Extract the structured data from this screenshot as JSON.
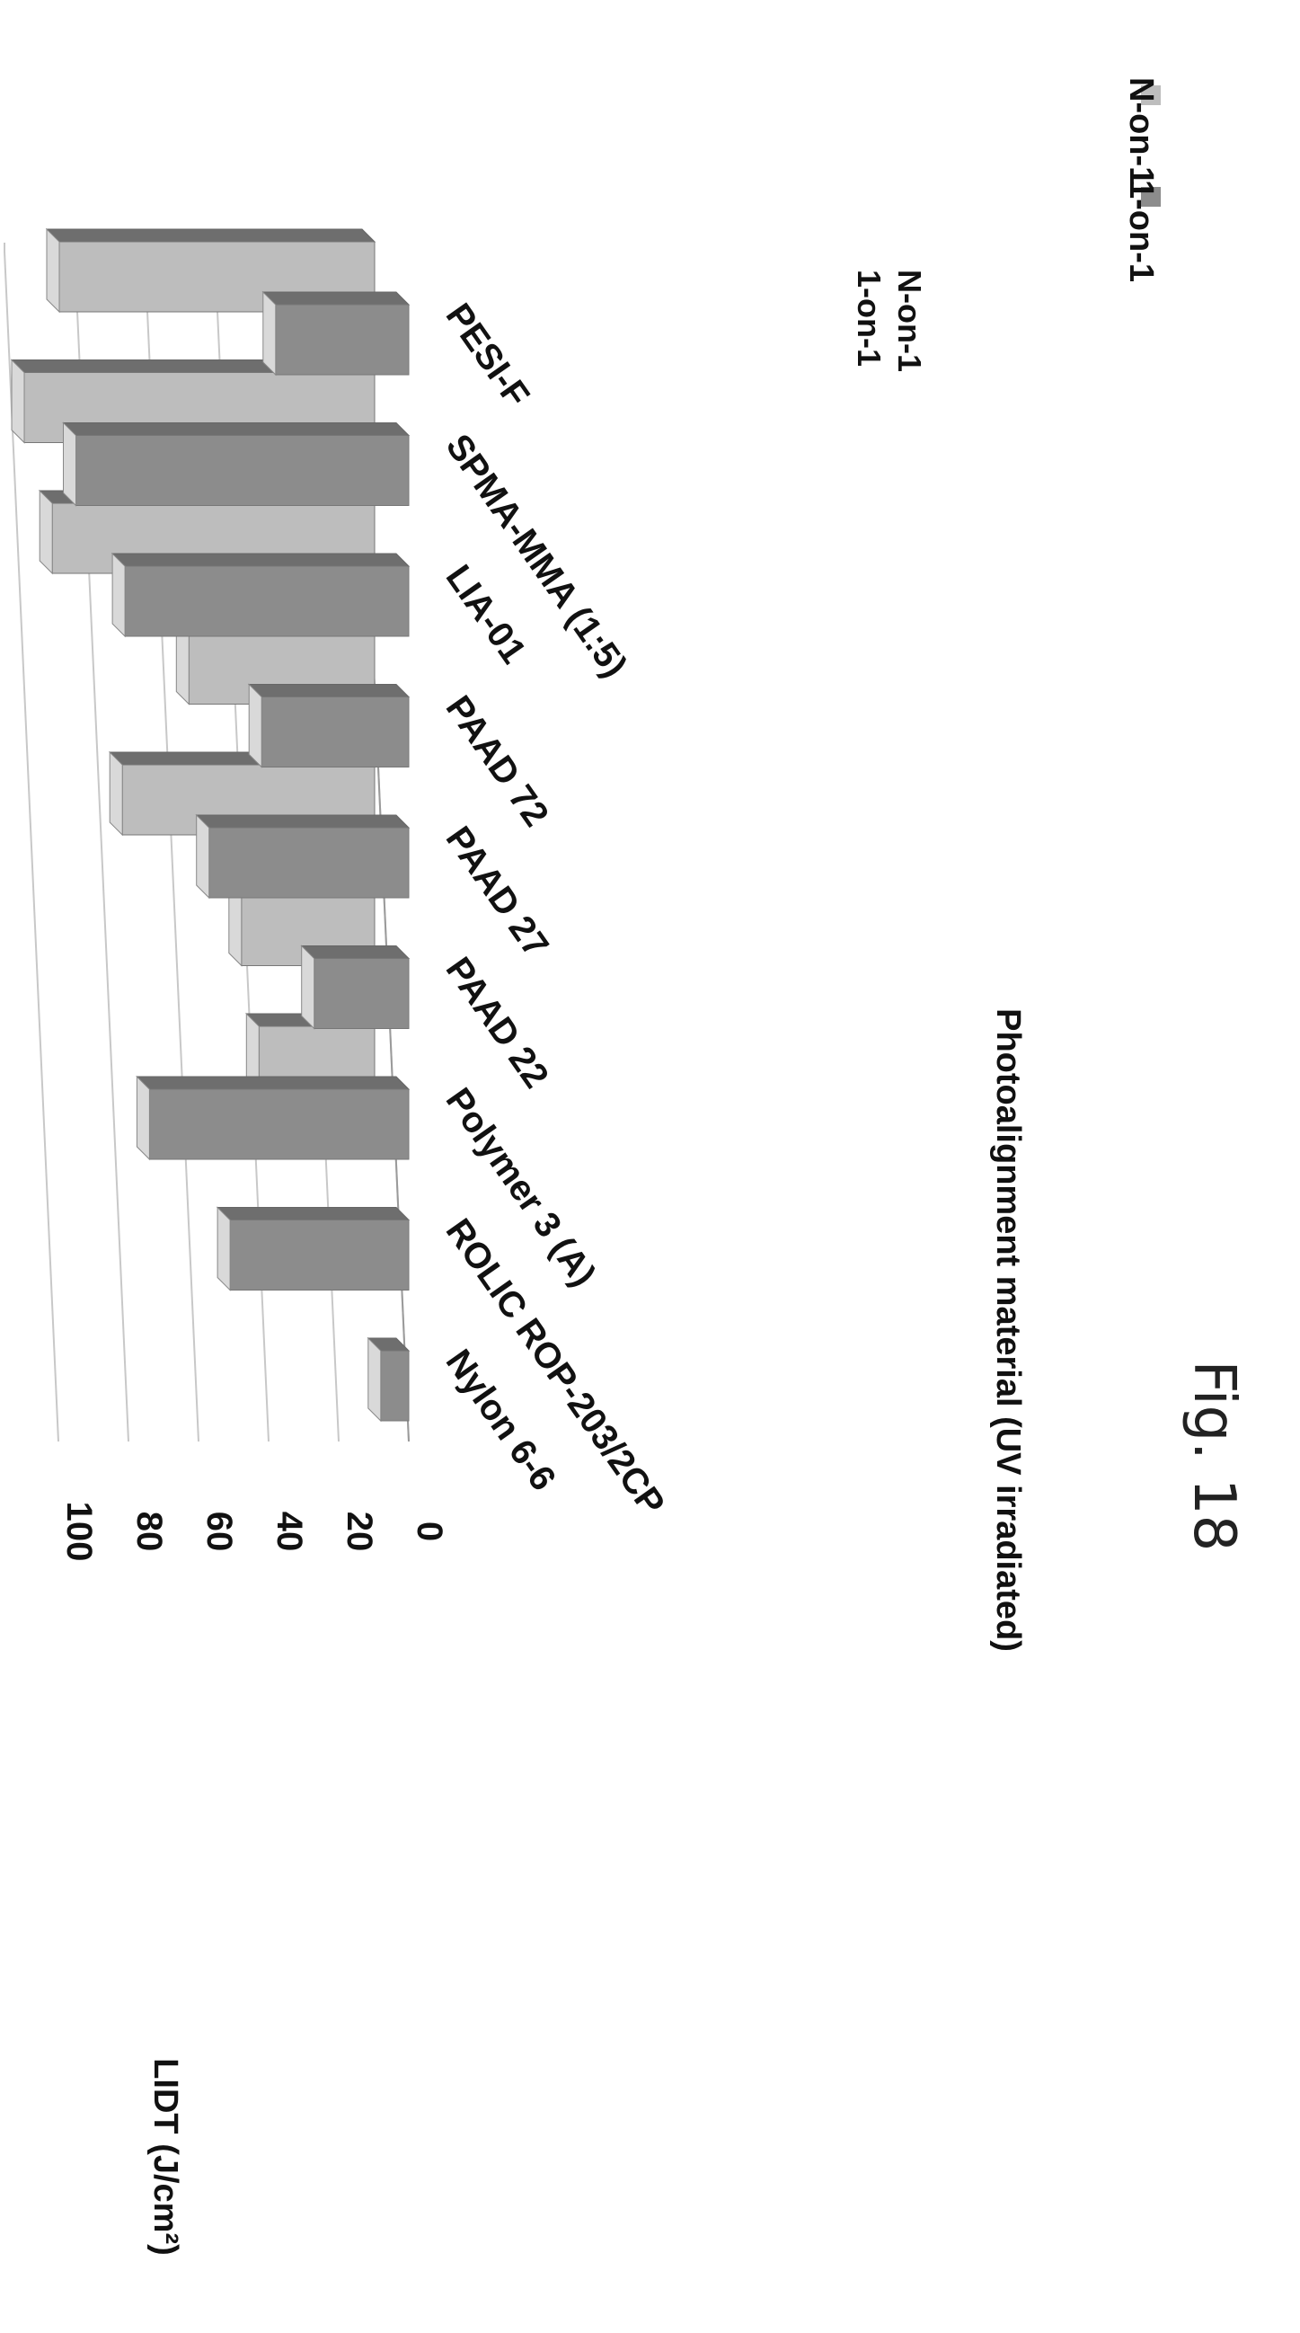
{
  "figure_caption": "Fig. 18",
  "chart_data": {
    "type": "bar",
    "title": "",
    "xlabel": "Photoalignment material (UV irradiated)",
    "ylabel": "LIDT (J/cm²)",
    "ylim": [
      0,
      100
    ],
    "yticks": [
      0,
      20,
      40,
      60,
      80,
      100
    ],
    "grid": true,
    "three_d": true,
    "legend_position": "top-right",
    "depth_labels": [
      "1-on-1",
      "N-on-1"
    ],
    "categories": [
      "Nylon 6-6",
      "ROLIC ROP-203/2CP",
      "Polymer 3 (A)",
      "PAAD 22",
      "PAAD 27",
      "PAAD 72",
      "LIA-01",
      "SPMA-MMA (1:5)",
      "PESI-F"
    ],
    "highlight_category": "SPMA-MMA (1:5)",
    "series": [
      {
        "name": "1-on-1",
        "values": [
          8,
          51,
          74,
          27,
          57,
          42,
          81,
          95,
          38
        ],
        "color": "#8c8c8c"
      },
      {
        "name": "N-on-1",
        "values": [
          0,
          0,
          33,
          38,
          72,
          53,
          92,
          100,
          90
        ],
        "color": "#bdbdbd"
      }
    ]
  }
}
